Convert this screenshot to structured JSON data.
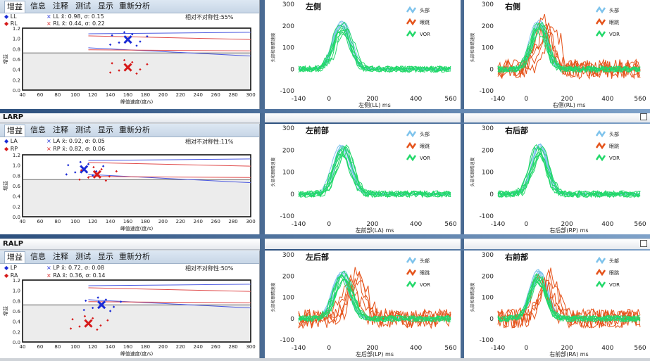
{
  "tabs": [
    "增益",
    "信息",
    "注释",
    "测试",
    "显示",
    "重新分析"
  ],
  "panels": [
    {
      "title": "",
      "legend": [
        {
          "label": "LL",
          "color": "#1a2bd6"
        },
        {
          "label": "RL",
          "color": "#d61a1a"
        }
      ],
      "stats": [
        "LL x̄: 0.98, σ: 0.15",
        "RL x̄: 0.44, σ: 0.22"
      ],
      "asymmetry": "相对不对称性:55%",
      "left_title": "左侧",
      "right_title": "右侧",
      "left_xlabel": "左侧(LL) ms",
      "right_xlabel": "右侧(RL) ms"
    },
    {
      "title": "LARP",
      "legend": [
        {
          "label": "LA",
          "color": "#1a2bd6"
        },
        {
          "label": "RP",
          "color": "#d61a1a"
        }
      ],
      "stats": [
        "LA x̄: 0.92, σ: 0.05",
        "RP x̄: 0.82, σ: 0.06"
      ],
      "asymmetry": "相对不对称性:11%",
      "left_title": "左前部",
      "right_title": "右后部",
      "left_xlabel": "左前部(LA) ms",
      "right_xlabel": "右后部(RP) ms"
    },
    {
      "title": "RALP",
      "legend": [
        {
          "label": "LP",
          "color": "#1a2bd6"
        },
        {
          "label": "RA",
          "color": "#d61a1a"
        }
      ],
      "stats": [
        "LP x̄: 0.72, σ: 0.08",
        "RA x̄: 0.36, σ: 0.14"
      ],
      "asymmetry": "相对不对称性:50%",
      "left_title": "左后部",
      "right_title": "右前部",
      "left_xlabel": "左后部(LP) ms",
      "right_xlabel": "右前部(RA) ms"
    }
  ],
  "gain_axis": {
    "ylabel": "增益",
    "xlabel": "峰值速度(度/s)",
    "yticks": [
      "0.0",
      "0.2",
      "0.4",
      "0.6",
      "0.8",
      "1.0",
      "1.2"
    ],
    "xticks": [
      "40",
      "60",
      "80",
      "100",
      "120",
      "140",
      "160",
      "180",
      "200",
      "220",
      "240",
      "260",
      "280",
      "300"
    ]
  },
  "trace_axis": {
    "ylabel": "头部和眼睛速度",
    "yticks": [
      "300",
      "200",
      "100",
      "0",
      "-100"
    ],
    "xticks": [
      "-140",
      "0",
      "200",
      "400",
      "560"
    ]
  },
  "trace_legend": [
    {
      "label": "头部",
      "color": "#7ec3ec"
    },
    {
      "label": "眼跳",
      "color": "#e5531b"
    },
    {
      "label": "VOR",
      "color": "#22d86a"
    }
  ],
  "chart_data": [
    {
      "type": "scatter",
      "series": [
        {
          "name": "LL",
          "mean_gain": 0.98,
          "sd": 0.15
        },
        {
          "name": "RL",
          "mean_gain": 0.44,
          "sd": 0.22
        }
      ],
      "xlim": [
        40,
        300
      ],
      "ylim": [
        0,
        1.2
      ]
    },
    {
      "type": "scatter",
      "series": [
        {
          "name": "LA",
          "mean_gain": 0.92,
          "sd": 0.05
        },
        {
          "name": "RP",
          "mean_gain": 0.82,
          "sd": 0.06
        }
      ],
      "xlim": [
        40,
        300
      ],
      "ylim": [
        0,
        1.2
      ]
    },
    {
      "type": "scatter",
      "series": [
        {
          "name": "LP",
          "mean_gain": 0.72,
          "sd": 0.08
        },
        {
          "name": "RA",
          "mean_gain": 0.36,
          "sd": 0.14
        }
      ],
      "xlim": [
        40,
        300
      ],
      "ylim": [
        0,
        1.2
      ]
    }
  ]
}
